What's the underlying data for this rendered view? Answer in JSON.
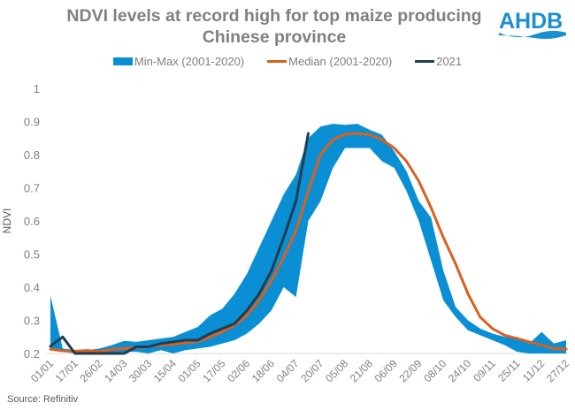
{
  "logo_text": "AHDB",
  "source": "Source: Refinitiv",
  "chart_data": {
    "type": "area",
    "title": "NDVI levels at record high for top maize producing Chinese province",
    "title_lines": [
      "NDVI levels at record high for top maize producing",
      "Chinese province"
    ],
    "xlabel": "",
    "ylabel": "NDVI",
    "ylim": [
      0.2,
      1.0
    ],
    "yticks": [
      0.2,
      0.3,
      0.4,
      0.5,
      0.6,
      0.7,
      0.8,
      0.9,
      1
    ],
    "ytick_labels": [
      "0.2",
      "0.3",
      "0.4",
      "0.5",
      "0.6",
      "0.7",
      "0.8",
      "0.9",
      "1"
    ],
    "grid": false,
    "legend_position": "top",
    "x_tick_labels": [
      "01/01",
      "17/01",
      "26/02",
      "14/03",
      "30/03",
      "15/04",
      "01/05",
      "17/05",
      "02/06",
      "18/06",
      "04/07",
      "20/07",
      "05/08",
      "21/08",
      "06/09",
      "22/09",
      "08/10",
      "24/10",
      "09/11",
      "25/11",
      "11/12",
      "27/12"
    ],
    "points_per_label": 2,
    "series": [
      {
        "name": "Min-Max (2001-2020)",
        "kind": "band",
        "color": "#0a8fd4",
        "min": [
          0.21,
          0.205,
          0.2,
          0.2,
          0.2,
          0.2,
          0.205,
          0.205,
          0.2,
          0.21,
          0.2,
          0.21,
          0.215,
          0.22,
          0.23,
          0.24,
          0.26,
          0.29,
          0.33,
          0.4,
          0.37,
          0.6,
          0.66,
          0.76,
          0.82,
          0.82,
          0.82,
          0.78,
          0.76,
          0.69,
          0.6,
          0.48,
          0.36,
          0.31,
          0.27,
          0.255,
          0.24,
          0.225,
          0.205,
          0.2,
          0.2,
          0.2,
          0.2
        ],
        "max": [
          0.375,
          0.215,
          0.21,
          0.21,
          0.215,
          0.225,
          0.238,
          0.235,
          0.24,
          0.245,
          0.25,
          0.265,
          0.28,
          0.315,
          0.335,
          0.38,
          0.44,
          0.52,
          0.6,
          0.68,
          0.74,
          0.85,
          0.885,
          0.893,
          0.89,
          0.893,
          0.875,
          0.86,
          0.81,
          0.75,
          0.66,
          0.61,
          0.45,
          0.34,
          0.3,
          0.275,
          0.26,
          0.25,
          0.25,
          0.23,
          0.265,
          0.23,
          0.24
        ]
      },
      {
        "name": "Median (2001-2020)",
        "kind": "line",
        "color": "#d9601e",
        "values": [
          0.213,
          0.208,
          0.207,
          0.209,
          0.206,
          0.212,
          0.215,
          0.218,
          0.22,
          0.225,
          0.228,
          0.232,
          0.236,
          0.25,
          0.265,
          0.285,
          0.315,
          0.36,
          0.42,
          0.49,
          0.57,
          0.69,
          0.8,
          0.845,
          0.862,
          0.864,
          0.86,
          0.845,
          0.82,
          0.78,
          0.72,
          0.64,
          0.55,
          0.47,
          0.38,
          0.31,
          0.275,
          0.255,
          0.245,
          0.235,
          0.225,
          0.215,
          0.213
        ]
      },
      {
        "name": "2021",
        "kind": "line",
        "color": "#1f3e4f",
        "values": [
          0.222,
          0.25,
          0.2,
          0.2,
          0.2,
          0.2,
          0.2,
          0.22,
          0.22,
          0.23,
          0.235,
          0.24,
          0.24,
          0.26,
          0.275,
          0.29,
          0.33,
          0.38,
          0.45,
          0.55,
          0.66,
          0.864
        ]
      }
    ]
  }
}
